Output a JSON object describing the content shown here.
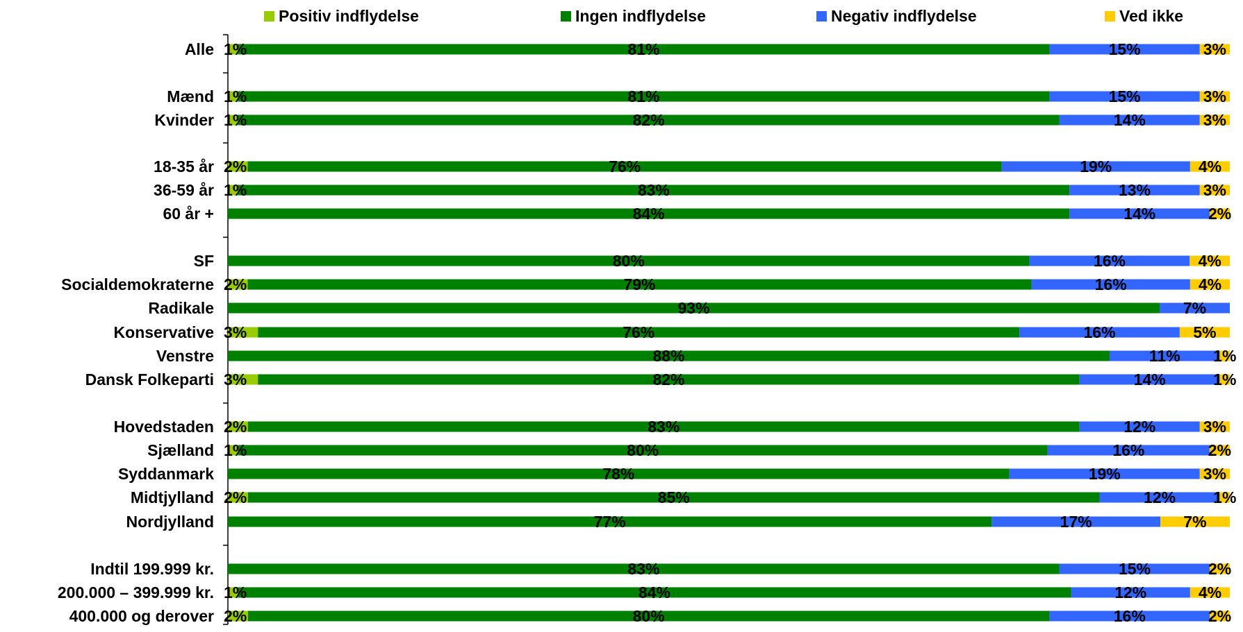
{
  "chart_data": {
    "type": "bar",
    "orientation": "horizontal",
    "stacked": true,
    "normalized_percent": true,
    "xlim": [
      0,
      100
    ],
    "legend_placement": "top",
    "grid": false,
    "categories": [
      "Alle",
      "Mænd",
      "Kvinder",
      "18-35 år",
      "36-59 år",
      "60 år +",
      "SF",
      "Socialdemokraterne",
      "Radikale",
      "Konservative",
      "Venstre",
      "Dansk Folkeparti",
      "Hovedstaden",
      "Sjælland",
      "Syddanmark",
      "Midtjylland",
      "Nordjylland",
      "Indtil 199.999 kr.",
      "200.000 – 399.999 kr.",
      "400.000 og derover"
    ],
    "series": [
      {
        "name": "Positiv indflydelse",
        "color": "#99cc00",
        "values": [
          1,
          1,
          1,
          2,
          1,
          0,
          0,
          2,
          0,
          3,
          0,
          3,
          2,
          1,
          0,
          2,
          0,
          0,
          1,
          2
        ],
        "labels": [
          "1%",
          "1%",
          "1%",
          "2%",
          "1%",
          "",
          "",
          "2%",
          "",
          "3%",
          "",
          "3%",
          "2%",
          "1%",
          "",
          "2%",
          "",
          "",
          "1%",
          "2%"
        ]
      },
      {
        "name": "Ingen indflydelse",
        "color": "#008000",
        "values": [
          81,
          81,
          82,
          76,
          83,
          84,
          80,
          79,
          93,
          76,
          88,
          82,
          83,
          80,
          78,
          85,
          77,
          83,
          84,
          80
        ],
        "labels": [
          "81%",
          "81%",
          "82%",
          "76%",
          "83%",
          "84%",
          "80%",
          "79%",
          "93%",
          "76%",
          "88%",
          "82%",
          "83%",
          "80%",
          "78%",
          "85%",
          "77%",
          "83%",
          "84%",
          "80%"
        ]
      },
      {
        "name": "Negativ indflydelse",
        "color": "#3366ff",
        "values": [
          15,
          15,
          14,
          19,
          13,
          14,
          16,
          16,
          7,
          16,
          11,
          14,
          12,
          16,
          19,
          12,
          17,
          15,
          12,
          16
        ],
        "labels": [
          "15%",
          "15%",
          "14%",
          "19%",
          "13%",
          "14%",
          "16%",
          "16%",
          "7%",
          "16%",
          "11%",
          "14%",
          "12%",
          "16%",
          "19%",
          "12%",
          "17%",
          "15%",
          "12%",
          "16%"
        ]
      },
      {
        "name": "Ved ikke",
        "color": "#ffcc00",
        "values": [
          3,
          3,
          3,
          4,
          3,
          2,
          4,
          4,
          0,
          5,
          1,
          1,
          3,
          2,
          3,
          1,
          7,
          2,
          4,
          2
        ],
        "labels": [
          "3%",
          "3%",
          "3%",
          "4%",
          "3%",
          "2%",
          "4%",
          "4%",
          "",
          "5%",
          "1%",
          "1%",
          "3%",
          "2%",
          "3%",
          "1%",
          "7%",
          "2%",
          "4%",
          "2%"
        ]
      }
    ]
  }
}
